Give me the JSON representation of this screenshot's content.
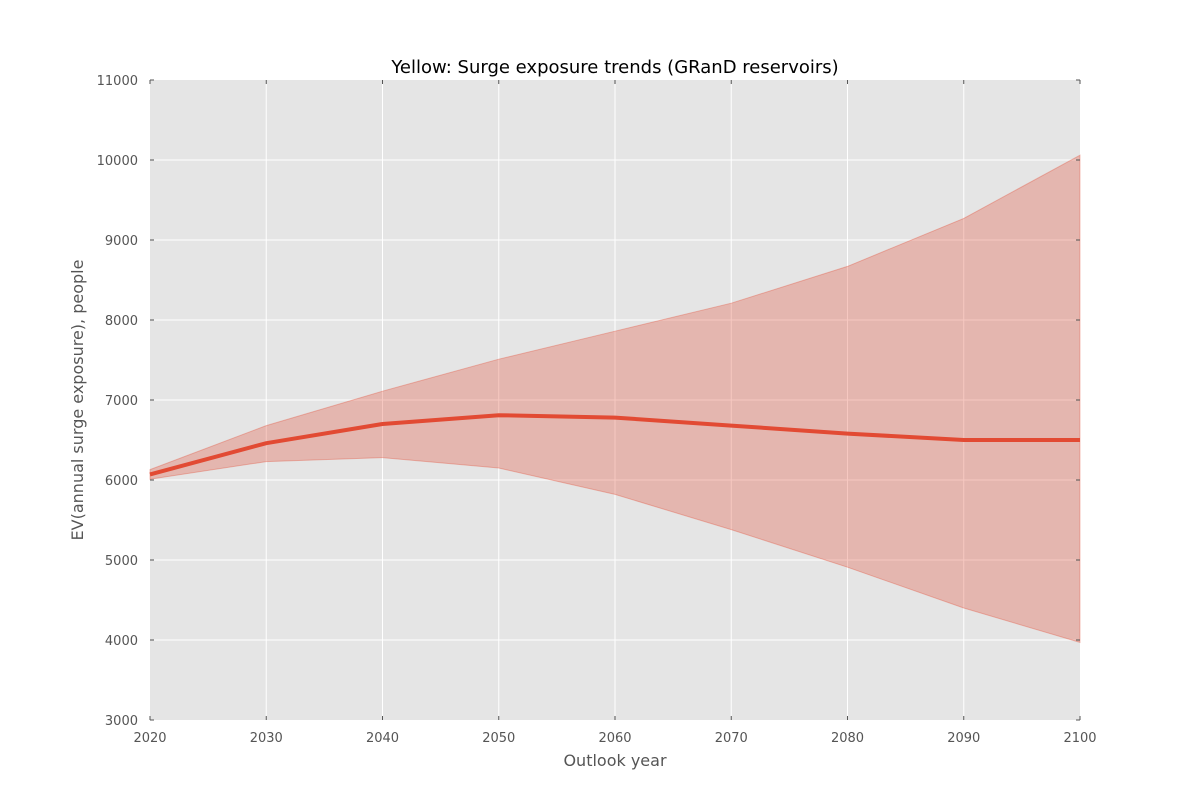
{
  "chart_data": {
    "type": "area",
    "title": "Yellow: Surge exposure trends (GRanD reservoirs)",
    "xlabel": "Outlook year",
    "ylabel": "EV(annual surge exposure), people",
    "x": [
      2020,
      2030,
      2040,
      2050,
      2060,
      2070,
      2080,
      2090,
      2100
    ],
    "xlim": [
      2020,
      2100
    ],
    "ylim": [
      3000,
      11000
    ],
    "xticks": [
      "2020",
      "2030",
      "2040",
      "2050",
      "2060",
      "2070",
      "2080",
      "2090",
      "2100"
    ],
    "yticks": [
      "3000",
      "4000",
      "5000",
      "6000",
      "7000",
      "8000",
      "9000",
      "10000",
      "11000"
    ],
    "grid": true,
    "series": [
      {
        "kind": "line",
        "values": [
          6070,
          6460,
          6700,
          6810,
          6780,
          6680,
          6580,
          6500,
          6500
        ],
        "color": "#E24A33"
      },
      {
        "kind": "band",
        "upper": [
          6130,
          6680,
          7110,
          7510,
          7860,
          8210,
          8670,
          9270,
          10060
        ],
        "lower": [
          6010,
          6230,
          6280,
          6150,
          5820,
          5380,
          4910,
          4400,
          3970
        ],
        "color": "#E24A33",
        "opacity": 0.3
      }
    ],
    "colors": {
      "plot_background": "#E5E5E5",
      "grid": "#FFFFFF",
      "tick_text": "#555555",
      "title": "#000000"
    }
  }
}
